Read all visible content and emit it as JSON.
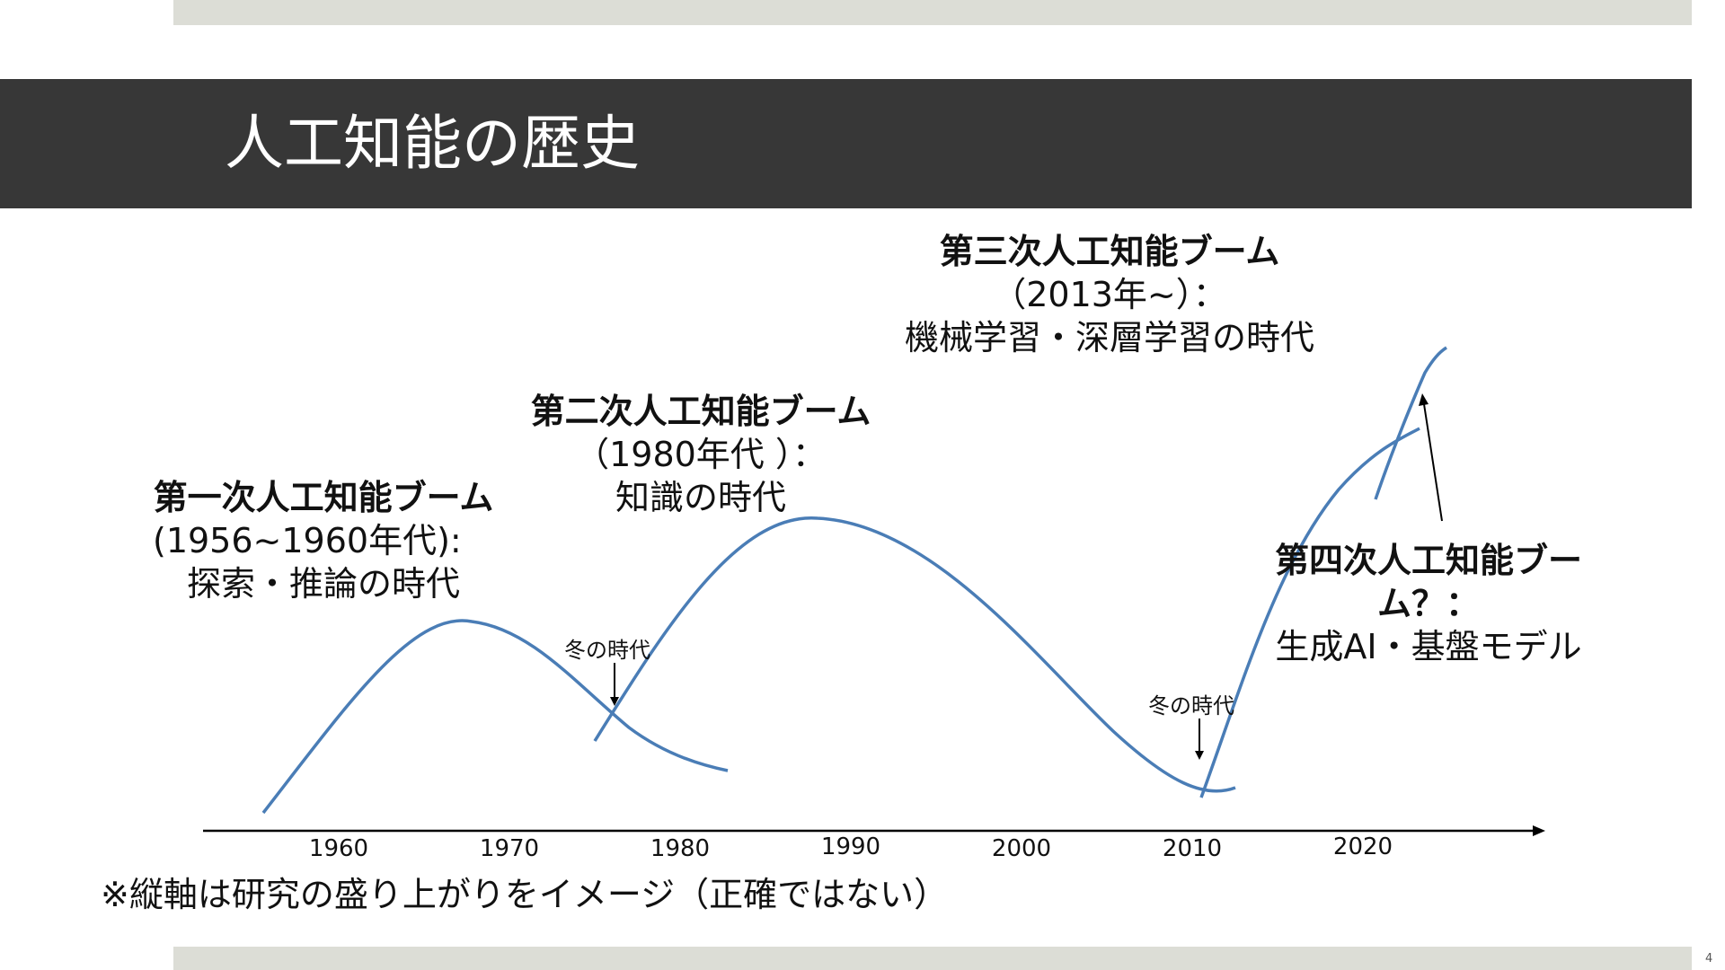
{
  "title": "人工知能の歴史",
  "page_number": "4",
  "booms": [
    {
      "heading": "第一次人工知能ブーム",
      "lines": [
        "(1956~1960年代):",
        "探索・推論の時代"
      ]
    },
    {
      "heading": "第二次人工知能ブーム",
      "lines": [
        "（1980年代 ）：",
        "知識の時代"
      ]
    },
    {
      "heading": "第三次人工知能ブーム",
      "lines": [
        "（2013年~）：",
        "機械学習・深層学習の時代"
      ]
    },
    {
      "heading_lines": [
        "第四次人工知能ブー",
        "ム？："
      ],
      "lines": [
        "生成AI・基盤モデル"
      ]
    }
  ],
  "winters": [
    "冬の時代",
    "冬の時代"
  ],
  "timeline": {
    "years": [
      "1960",
      "1970",
      "1980",
      "1990",
      "2000",
      "2010",
      "2020"
    ]
  },
  "note": "※縦軸は研究の盛り上がりをイメージ（正確ではない）",
  "colors": {
    "curve": "#4a7db6",
    "title_band": "#373737",
    "band": "#dcddd6"
  }
}
